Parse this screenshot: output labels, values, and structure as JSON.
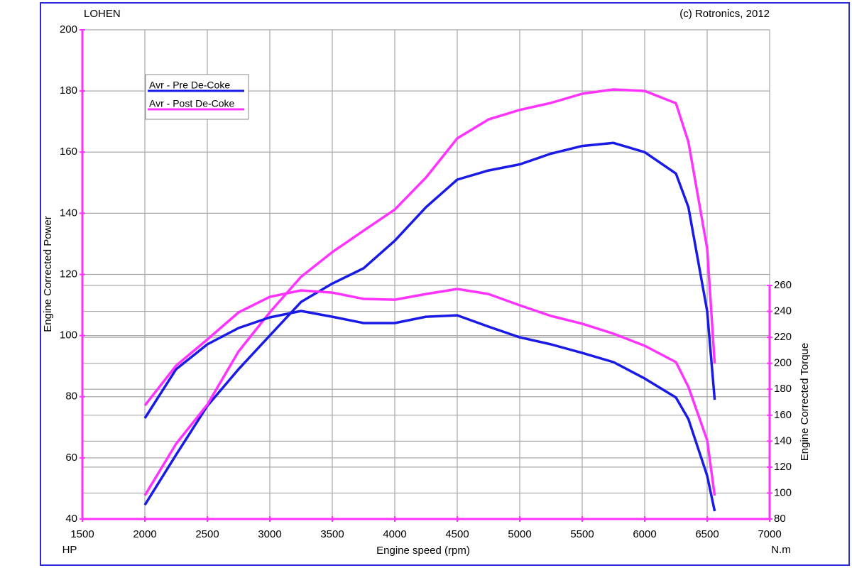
{
  "chart_data": {
    "type": "line",
    "title": "LOHEN",
    "subtitle": "(c) Rotronics, 2012",
    "x_label": "Engine speed (rpm)",
    "y_label": "Engine Corrected Power",
    "y2_label": "Engine Corrected Torque",
    "y_unit": "HP",
    "y2_unit": "N.m",
    "x": [
      2000,
      2250,
      2500,
      2750,
      3000,
      3250,
      3500,
      3750,
      4000,
      4250,
      4500,
      4750,
      5000,
      5250,
      5500,
      5750,
      6000,
      6250,
      6350,
      6500,
      6560
    ],
    "series": [
      {
        "name": "Avr - Pre De-Coke",
        "color": "#1a1ae6",
        "values": [
          44.6,
          61,
          77,
          89,
          100,
          111,
          117,
          122,
          131,
          142,
          151,
          154,
          156,
          159.5,
          162,
          163,
          160,
          153,
          142,
          108,
          79
        ]
      },
      {
        "name": "Avr - Post De-Coke",
        "color": "#ff33ff",
        "values": [
          47.7,
          64.6,
          77.4,
          94.8,
          107.6,
          119.2,
          127.3,
          134.3,
          141.2,
          151.7,
          164.5,
          170.7,
          173.8,
          176.1,
          179.1,
          180.5,
          180,
          176,
          163.3,
          128.5,
          90.8
        ]
      },
      {
        "color": "#1a1ae6",
        "axis": "y2",
        "values": [
          157.7,
          195.4,
          214.6,
          227.2,
          235.4,
          240.3,
          235.9,
          231,
          231,
          235.9,
          237,
          228.3,
          220,
          214.6,
          208,
          200.9,
          188.3,
          173.6,
          157,
          113.4,
          86
        ]
      },
      {
        "color": "#ff33ff",
        "axis": "y2",
        "values": [
          167.5,
          198.2,
          218.4,
          239.2,
          251.2,
          256.2,
          254.5,
          249.6,
          249,
          253.4,
          257.3,
          253.4,
          244.7,
          236.5,
          230.5,
          222.8,
          213.5,
          200.9,
          181.8,
          140.7,
          98
        ]
      }
    ],
    "xlim": [
      1500,
      7000
    ],
    "xticks": [
      1500,
      2000,
      2500,
      3000,
      3500,
      4000,
      4500,
      5000,
      5500,
      6000,
      6500,
      7000
    ],
    "ylim": [
      40,
      200
    ],
    "yticks": [
      40,
      60,
      80,
      100,
      120,
      140,
      160,
      180,
      200
    ],
    "y2lim": [
      80,
      457
    ],
    "y2ticks": [
      80,
      100,
      120,
      140,
      160,
      180,
      200,
      220,
      240,
      260
    ],
    "grid": true,
    "legend": "top-left",
    "axis_color": "#ff33ff"
  }
}
